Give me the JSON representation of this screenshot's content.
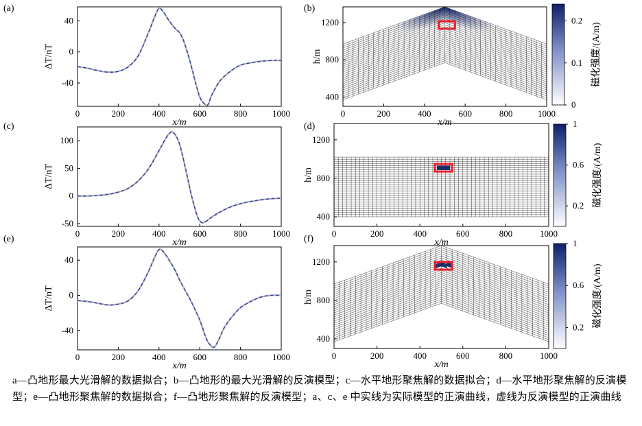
{
  "caption": "a—凸地形最大光滑解的数据拟合；b—凸地形的最大光滑解的反演模型；c—水平地形聚焦解的数据拟合；d—水平地形聚焦解的反演模型；e—凸地形聚焦解的数据拟合；f—凸地形聚焦解的反演模型；a、c、e 中实线为实际模型的正演曲线，虚线为反演模型的正演曲线",
  "colors": {
    "observed": "#b9b9b9",
    "predicted": "#2f3fb0",
    "grid": "#111111",
    "target_box": "#e8202a",
    "colormap_high": "#0d1f6b",
    "colormap_low": "#ffffff"
  },
  "chart_data": [
    {
      "panel": "(a)",
      "type": "line",
      "xlabel": "x/m",
      "ylabel": "ΔT/nT",
      "xlim": [
        0,
        1000
      ],
      "ylim": [
        -70,
        58
      ],
      "xticks": [
        "0",
        "200",
        "400",
        "600",
        "800",
        "1000"
      ],
      "yticks": [
        "40",
        "0",
        "-40"
      ],
      "series": [
        {
          "style": "solid",
          "x": [
            0,
            50,
            100,
            150,
            200,
            250,
            300,
            350,
            380,
            400,
            420,
            450,
            480,
            500,
            520,
            550,
            580,
            600,
            620,
            640,
            660,
            700,
            750,
            800,
            850,
            900,
            950,
            1000
          ],
          "values": [
            -19,
            -21,
            -24,
            -26,
            -25,
            -19,
            -4,
            26,
            46,
            56,
            52,
            40,
            30,
            25,
            15,
            -10,
            -40,
            -58,
            -66,
            -68,
            -55,
            -37,
            -25,
            -17,
            -14,
            -12,
            -11,
            -11
          ]
        },
        {
          "style": "dashed",
          "x": [
            0,
            50,
            100,
            150,
            200,
            250,
            300,
            350,
            380,
            400,
            420,
            450,
            480,
            500,
            520,
            550,
            580,
            600,
            620,
            640,
            660,
            700,
            750,
            800,
            850,
            900,
            950,
            1000
          ],
          "values": [
            -19,
            -21,
            -24,
            -26,
            -25,
            -19,
            -4,
            26,
            46,
            56,
            52,
            40,
            30,
            25,
            15,
            -10,
            -40,
            -58,
            -66,
            -68,
            -55,
            -37,
            -25,
            -17,
            -14,
            -12,
            -11,
            -11
          ]
        }
      ]
    },
    {
      "panel": "(b)",
      "type": "heatmap",
      "xlabel": "x/m",
      "ylabel": "h/m",
      "xlim": [
        0,
        1000
      ],
      "ylim": [
        300,
        1370
      ],
      "xticks": [
        "0",
        "200",
        "400",
        "600",
        "800",
        "1000"
      ],
      "yticks": [
        "400",
        "800",
        "1200"
      ],
      "colorbar": {
        "label": "磁化强度/(A/m)",
        "range": [
          0,
          0.24
        ],
        "ticks": [
          "0",
          "0.1",
          "0.2"
        ]
      },
      "terrain": "convex",
      "target_box": {
        "x": [
          470,
          550
        ],
        "h": [
          1135,
          1215
        ]
      }
    },
    {
      "panel": "(c)",
      "type": "line",
      "xlabel": "x/m",
      "ylabel": "ΔT/nT",
      "xlim": [
        0,
        1000
      ],
      "ylim": [
        -55,
        125
      ],
      "xticks": [
        "0",
        "200",
        "400",
        "600",
        "800",
        "1000"
      ],
      "yticks": [
        "100",
        "50",
        "0",
        "-50"
      ],
      "series": [
        {
          "style": "solid",
          "x": [
            0,
            50,
            100,
            150,
            200,
            250,
            300,
            350,
            400,
            430,
            450,
            470,
            500,
            530,
            560,
            590,
            610,
            630,
            660,
            700,
            750,
            800,
            850,
            900,
            950,
            1000
          ],
          "values": [
            0,
            0,
            1,
            3,
            7,
            14,
            28,
            50,
            82,
            102,
            113,
            115,
            95,
            50,
            0,
            -38,
            -48,
            -46,
            -38,
            -29,
            -20,
            -14,
            -10,
            -7,
            -5,
            -4
          ]
        },
        {
          "style": "dashed",
          "x": [
            0,
            50,
            100,
            150,
            200,
            250,
            300,
            350,
            400,
            430,
            450,
            470,
            500,
            530,
            560,
            590,
            610,
            630,
            660,
            700,
            750,
            800,
            850,
            900,
            950,
            1000
          ],
          "values": [
            0,
            0,
            1,
            3,
            7,
            14,
            28,
            50,
            82,
            102,
            113,
            115,
            95,
            50,
            0,
            -38,
            -48,
            -46,
            -38,
            -29,
            -20,
            -14,
            -10,
            -7,
            -5,
            -4
          ]
        }
      ]
    },
    {
      "panel": "(d)",
      "type": "heatmap",
      "xlabel": "x/m",
      "ylabel": "h/m",
      "xlim": [
        0,
        1000
      ],
      "ylim": [
        300,
        1370
      ],
      "xticks": [
        "0",
        "200",
        "400",
        "600",
        "800",
        "1000"
      ],
      "yticks": [
        "400",
        "800",
        "1200"
      ],
      "colorbar": {
        "label": "磁化强度/(A/m)",
        "range": [
          0,
          1
        ],
        "ticks": [
          "1",
          "0.6",
          "0.2"
        ]
      },
      "terrain": "flat",
      "target_box": {
        "x": [
          470,
          550
        ],
        "h": [
          870,
          950
        ]
      }
    },
    {
      "panel": "(e)",
      "type": "line",
      "xlabel": "x/m",
      "ylabel": "ΔT/nT",
      "xlim": [
        0,
        1000
      ],
      "ylim": [
        -62,
        55
      ],
      "xticks": [
        "0",
        "200",
        "400",
        "600",
        "800",
        "1000"
      ],
      "yticks": [
        "40",
        "0",
        "-40"
      ],
      "series": [
        {
          "style": "solid",
          "x": [
            0,
            50,
            100,
            150,
            200,
            250,
            300,
            350,
            380,
            400,
            420,
            450,
            480,
            500,
            530,
            560,
            600,
            630,
            650,
            670,
            690,
            720,
            760,
            800,
            850,
            900,
            950,
            1000
          ],
          "values": [
            -6,
            -7,
            -9,
            -11,
            -10,
            -6,
            6,
            28,
            44,
            52,
            50,
            40,
            28,
            18,
            5,
            -8,
            -28,
            -48,
            -56,
            -59,
            -52,
            -37,
            -24,
            -14,
            -7,
            -2,
            0,
            0
          ]
        },
        {
          "style": "dashed",
          "x": [
            0,
            50,
            100,
            150,
            200,
            250,
            300,
            350,
            380,
            400,
            420,
            450,
            480,
            500,
            530,
            560,
            600,
            630,
            650,
            670,
            690,
            720,
            760,
            800,
            850,
            900,
            950,
            1000
          ],
          "values": [
            -6,
            -7,
            -9,
            -11,
            -10,
            -6,
            6,
            28,
            44,
            52,
            50,
            40,
            28,
            18,
            5,
            -8,
            -28,
            -48,
            -56,
            -59,
            -52,
            -37,
            -24,
            -14,
            -7,
            -2,
            0,
            0
          ]
        }
      ]
    },
    {
      "panel": "(f)",
      "type": "heatmap",
      "xlabel": "x/m",
      "ylabel": "h/m",
      "xlim": [
        0,
        1000
      ],
      "ylim": [
        300,
        1370
      ],
      "xticks": [
        "0",
        "200",
        "400",
        "600",
        "800",
        "1000"
      ],
      "yticks": [
        "400",
        "800",
        "1200"
      ],
      "colorbar": {
        "label": "磁化强度/(A/m)",
        "range": [
          0,
          1
        ],
        "ticks": [
          "1",
          "0.6",
          "0.2"
        ]
      },
      "terrain": "convex",
      "target_box": {
        "x": [
          470,
          550
        ],
        "h": [
          1120,
          1200
        ]
      }
    }
  ]
}
